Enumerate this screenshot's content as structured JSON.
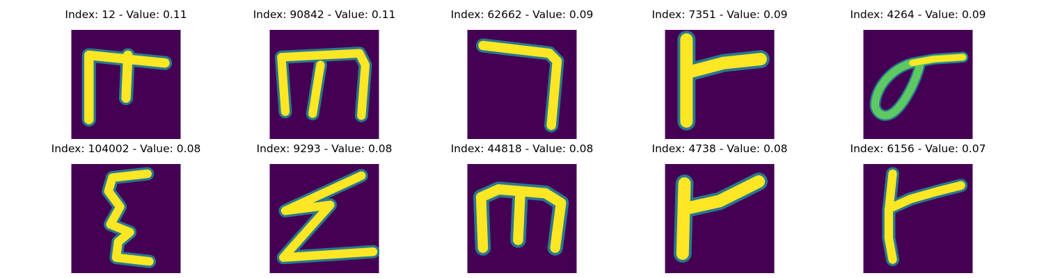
{
  "colors": {
    "background": "#440154",
    "stroke_outer": "#2a788e",
    "stroke_mid": "#5ec962",
    "stroke_core": "#fde725"
  },
  "grid": [
    {
      "title": "Index: 12 - Value: 0.11",
      "image": "glyph-m-with-cross"
    },
    {
      "title": "Index: 90842 - Value: 0.11",
      "image": "glyph-m"
    },
    {
      "title": "Index: 62662 - Value: 0.09",
      "image": "glyph-seven"
    },
    {
      "title": "Index: 7351 - Value: 0.09",
      "image": "glyph-r-flag"
    },
    {
      "title": "Index: 4264 - Value: 0.09",
      "image": "glyph-loop"
    },
    {
      "title": "Index: 104002 - Value: 0.08",
      "image": "glyph-epsilon"
    },
    {
      "title": "Index: 9293 - Value: 0.08",
      "image": "glyph-z"
    },
    {
      "title": "Index: 44818 - Value: 0.08",
      "image": "glyph-m-round"
    },
    {
      "title": "Index: 4738 - Value: 0.08",
      "image": "glyph-r-flag"
    },
    {
      "title": "Index: 6156 - Value: 0.07",
      "image": "glyph-r-curved"
    }
  ]
}
